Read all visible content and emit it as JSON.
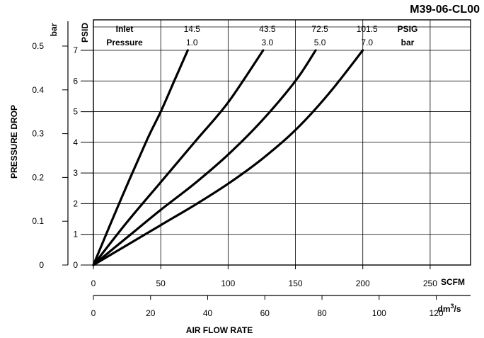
{
  "chart_data": {
    "type": "line",
    "title": "M39-06-CL00",
    "xlabel": "AIR FLOW RATE",
    "ylabel": "PRESSURE DROP",
    "x_unit": "SCFM",
    "x2_unit": "dm3/s",
    "x2_unit_base": "dm",
    "x2_unit_sup": "3",
    "x2_unit_tail": "/s",
    "y_unit": "PSID",
    "y2_unit": "bar",
    "xlim": [
      0,
      280
    ],
    "ylim": [
      0,
      7
    ],
    "x2lim": [
      0,
      132
    ],
    "y2lim": [
      0,
      0.5
    ],
    "x_ticks": [
      0,
      50,
      100,
      150,
      200,
      250
    ],
    "x2_ticks": [
      0,
      20,
      40,
      60,
      80,
      100,
      120
    ],
    "y_ticks": [
      0,
      1,
      2,
      3,
      4,
      5,
      6,
      7
    ],
    "y2_ticks": [
      0,
      0.1,
      0.2,
      0.3,
      0.4,
      0.5
    ],
    "grid": true,
    "legend": {
      "inlet_label": "Inlet",
      "pressure_label": "Pressure",
      "psig_label": "PSIG",
      "bar_label": "bar",
      "psig_values": [
        "14.5",
        "43.5",
        "72.5",
        "101.5"
      ],
      "bar_values": [
        "1.0",
        "3.0",
        "5.0",
        "7.0"
      ]
    },
    "series": [
      {
        "name": "14.5 PSIG / 1.0 bar",
        "x": [
          0,
          20,
          40,
          50,
          60,
          70
        ],
        "y": [
          0,
          2.1,
          4.1,
          5.0,
          6.0,
          7.0
        ]
      },
      {
        "name": "43.5 PSIG / 3.0 bar",
        "x": [
          0,
          25,
          50,
          75,
          100,
          126
        ],
        "y": [
          0,
          1.4,
          2.7,
          4.0,
          5.3,
          7.0
        ]
      },
      {
        "name": "72.5 PSIG / 5.0 bar",
        "x": [
          0,
          25,
          50,
          75,
          100,
          125,
          150,
          165
        ],
        "y": [
          0,
          0.9,
          1.8,
          2.65,
          3.6,
          4.7,
          6.0,
          7.0
        ]
      },
      {
        "name": "101.5 PSIG / 7.0 bar",
        "x": [
          0,
          25,
          50,
          75,
          100,
          125,
          150,
          175,
          200
        ],
        "y": [
          0,
          0.65,
          1.3,
          1.95,
          2.65,
          3.45,
          4.4,
          5.6,
          7.0
        ]
      }
    ]
  }
}
